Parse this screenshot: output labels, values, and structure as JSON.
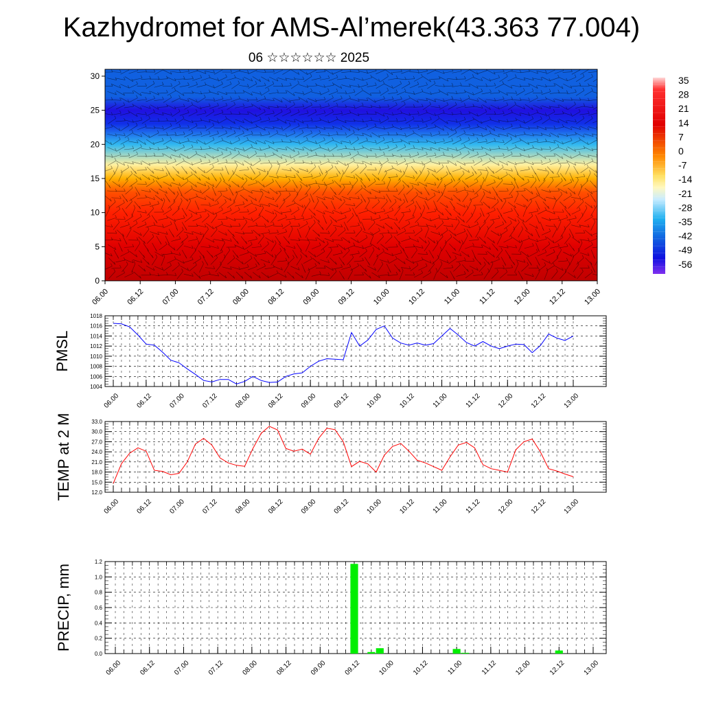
{
  "title": "Kazhydromet for AMS-Al’merek(43.363 77.004)",
  "subtitle": "06 ☆☆☆☆☆☆ 2025",
  "time_labels": [
    "06.00",
    "06.12",
    "07.00",
    "07.12",
    "08.00",
    "08.12",
    "09.00",
    "09.12",
    "10.00",
    "10.12",
    "11.00",
    "11.12",
    "12.00",
    "12.12",
    "13.00"
  ],
  "colors": {
    "pmsl_line": "#0000ff",
    "temp_line": "#ff0000",
    "precip_bar": "#00ee00",
    "grid": "#000000"
  },
  "chart_data": [
    {
      "type": "heatmap",
      "name": "vertical-cross-section",
      "x_tick_labels": [
        "06.00",
        "06.12",
        "07.00",
        "07.12",
        "08.00",
        "08.12",
        "09.00",
        "09.12",
        "10.00",
        "10.12",
        "11.00",
        "11.12",
        "12.00",
        "12.12",
        "13.00"
      ],
      "y_ticks": [
        0,
        5,
        10,
        15,
        20,
        25,
        30
      ],
      "ylim": [
        0,
        31
      ],
      "colorbar": {
        "labels": [
          "35",
          "28",
          "21",
          "14",
          "7",
          "0",
          "-7",
          "-14",
          "-21",
          "-28",
          "-35",
          "-42",
          "-49",
          "-56"
        ],
        "range": [
          -60,
          38
        ]
      },
      "levels_temperature": [
        {
          "y": 0,
          "value": 30
        },
        {
          "y": 5,
          "value": 25
        },
        {
          "y": 10,
          "value": 18
        },
        {
          "y": 13,
          "value": 8
        },
        {
          "y": 15,
          "value": -5
        },
        {
          "y": 17,
          "value": -15
        },
        {
          "y": 20,
          "value": -30
        },
        {
          "y": 23,
          "value": -55
        },
        {
          "y": 25,
          "value": -56
        },
        {
          "y": 27,
          "value": -48
        },
        {
          "y": 31,
          "value": -45
        }
      ]
    },
    {
      "type": "line",
      "name": "PMSL",
      "ylabel": "PMSL",
      "ylim": [
        1004,
        1018
      ],
      "y_ticks": [
        1004,
        1006,
        1008,
        1010,
        1012,
        1014,
        1016,
        1018
      ],
      "x_tick_labels": [
        "06.00",
        "06.12",
        "07.00",
        "07.12",
        "08.00",
        "08.12",
        "09.00",
        "09.12",
        "10.00",
        "10.12",
        "11.00",
        "11.12",
        "12.00",
        "12.12",
        "13.00"
      ],
      "x_step_hours": 3,
      "values": [
        1016.5,
        1016.4,
        1015.8,
        1014.2,
        1012.4,
        1012.2,
        1010.8,
        1009.2,
        1008.7,
        1007.5,
        1006.4,
        1005.2,
        1004.9,
        1005.4,
        1005.4,
        1004.5,
        1005.0,
        1006.0,
        1005.2,
        1004.8,
        1004.9,
        1006.0,
        1006.5,
        1006.7,
        1008.0,
        1009.0,
        1009.5,
        1009.4,
        1009.3,
        1014.7,
        1012.0,
        1013.2,
        1015.3,
        1016.0,
        1013.6,
        1012.6,
        1012.2,
        1012.6,
        1012.2,
        1012.5,
        1014.0,
        1015.5,
        1014.2,
        1012.7,
        1012.0,
        1012.9,
        1012.0,
        1011.5,
        1012.0,
        1012.4,
        1012.3,
        1010.7,
        1012.1,
        1014.4,
        1013.6,
        1013.1,
        1014.0
      ]
    },
    {
      "type": "line",
      "name": "TEMP at 2 M",
      "ylabel": "TEMP at 2 M",
      "ylim": [
        12,
        33
      ],
      "y_ticks": [
        "12.0",
        "15.0",
        "18.0",
        "21.0",
        "24.0",
        "27.0",
        "30.0",
        "33.0"
      ],
      "x_tick_labels": [
        "06.00",
        "06.12",
        "07.00",
        "07.12",
        "08.00",
        "08.12",
        "09.00",
        "09.12",
        "10.00",
        "10.12",
        "11.00",
        "11.12",
        "12.00",
        "12.12",
        "13.00"
      ],
      "x_step_hours": 3,
      "values": [
        14.6,
        20.5,
        23.6,
        25.2,
        24.2,
        18.5,
        18.2,
        17.2,
        17.6,
        21.0,
        26.3,
        28.0,
        26.0,
        22.2,
        20.7,
        20.0,
        19.7,
        25.0,
        29.5,
        31.6,
        30.5,
        25.0,
        24.2,
        24.8,
        23.3,
        28.0,
        31.0,
        30.6,
        27.0,
        19.6,
        21.2,
        20.4,
        18.0,
        23.0,
        25.6,
        26.5,
        24.2,
        21.5,
        20.7,
        19.6,
        18.5,
        22.5,
        26.0,
        26.8,
        25.2,
        20.2,
        19.0,
        18.5,
        18.0,
        24.6,
        27.0,
        27.8,
        24.0,
        19.0,
        18.3,
        17.4,
        16.6
      ]
    },
    {
      "type": "bar",
      "name": "PRECIP, mm",
      "ylabel": "PRECIP, mm",
      "ylim": [
        0,
        1.2
      ],
      "y_ticks": [
        "0.0",
        "0.2",
        "0.4",
        "0.6",
        "0.8",
        "1.0",
        "1.2"
      ],
      "x_tick_labels": [
        "06.00",
        "06.12",
        "07.00",
        "07.12",
        "08.00",
        "08.12",
        "09.00",
        "09.12",
        "10.00",
        "10.12",
        "11.00",
        "11.12",
        "12.00",
        "12.12",
        "13.00"
      ],
      "x_step_hours": 3,
      "values": [
        0,
        0,
        0,
        0,
        0,
        0,
        0,
        0,
        0,
        0,
        0,
        0,
        0,
        0,
        0,
        0,
        0,
        0,
        0,
        0,
        0,
        0,
        0,
        0,
        0,
        0,
        0,
        0,
        1.17,
        0,
        0.02,
        0.07,
        0,
        0,
        0,
        0,
        0,
        0,
        0,
        0,
        0.06,
        0.01,
        0,
        0,
        0,
        0,
        0,
        0,
        0,
        0,
        0,
        0,
        0.04,
        0,
        0,
        0
      ]
    }
  ]
}
